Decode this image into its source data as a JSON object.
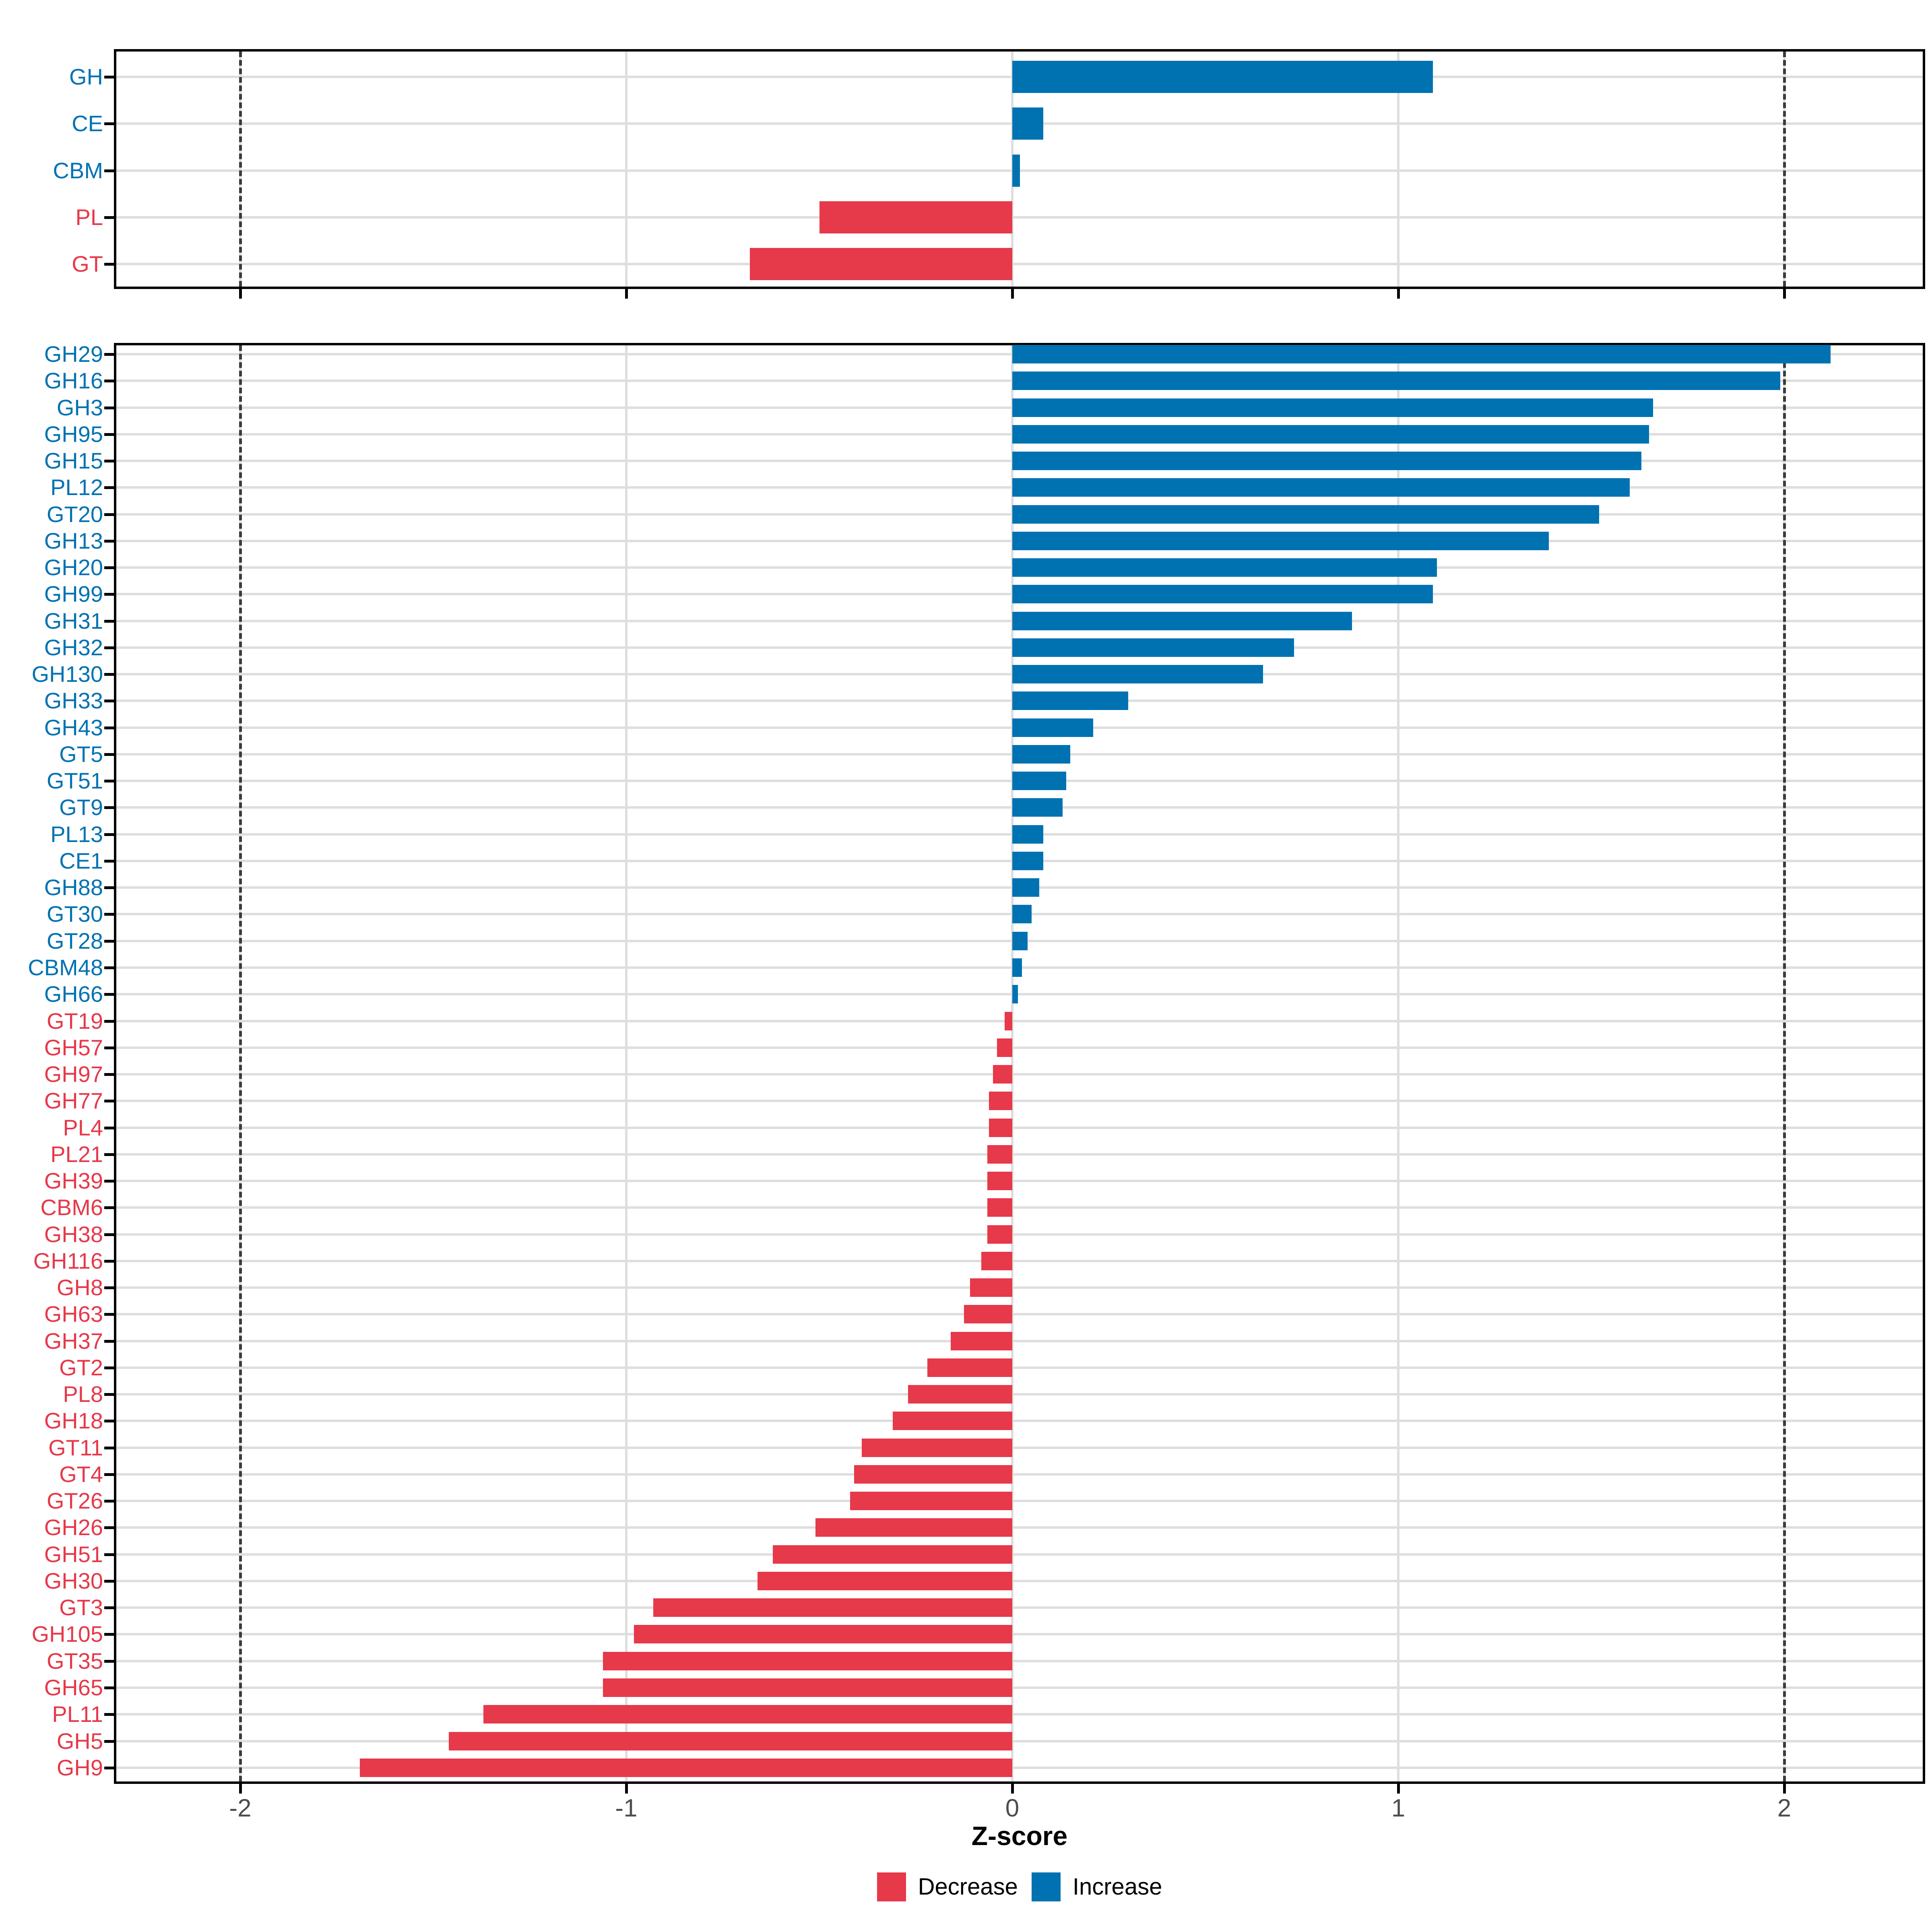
{
  "figure": {
    "background": "#ffffff"
  },
  "colors": {
    "increase": "#0072B2",
    "decrease": "#E6394A",
    "gridline": "#dedede",
    "panel_border": "#000000",
    "dashed_line": "#3a3a3a",
    "tick_label": "#4d4d4d"
  },
  "axis": {
    "title": "Z-score",
    "tick_labels": [
      "-2",
      "-1",
      "0",
      "1",
      "2"
    ],
    "tick_values": [
      -2,
      -1,
      0,
      1,
      2
    ],
    "dashed_lines_z": [
      -2,
      2
    ],
    "xlim": [
      -2.33,
      2.37
    ]
  },
  "legend": {
    "items": [
      {
        "label": "Decrease",
        "color_key": "decrease"
      },
      {
        "label": "Increase",
        "color_key": "increase"
      }
    ]
  },
  "chart_data": [
    {
      "type": "bar",
      "orientation": "horizontal",
      "panel": "enzyme-class-summary",
      "title": "",
      "xlabel": "Z-score",
      "xlim": [
        -2.33,
        2.37
      ],
      "grid": true,
      "categories": [
        "GH",
        "CE",
        "CBM",
        "PL",
        "GT"
      ],
      "values": [
        1.09,
        0.08,
        0.02,
        -0.5,
        -0.68
      ],
      "directions": [
        "Increase",
        "Increase",
        "Increase",
        "Decrease",
        "Decrease"
      ]
    },
    {
      "type": "bar",
      "orientation": "horizontal",
      "panel": "cazyme-families",
      "title": "",
      "xlabel": "Z-score",
      "xlim": [
        -2.33,
        2.37
      ],
      "grid": true,
      "categories": [
        "GH29",
        "GH16",
        "GH3",
        "GH95",
        "GH15",
        "PL12",
        "GT20",
        "GH13",
        "GH20",
        "GH99",
        "GH31",
        "GH32",
        "GH130",
        "GH33",
        "GH43",
        "GT5",
        "GT51",
        "GT9",
        "PL13",
        "CE1",
        "GH88",
        "GT30",
        "GT28",
        "CBM48",
        "GH66",
        "GT19",
        "GH57",
        "GH97",
        "GH77",
        "PL4",
        "PL21",
        "GH39",
        "CBM6",
        "GH38",
        "GH116",
        "GH8",
        "GH63",
        "GH37",
        "GT2",
        "PL8",
        "GH18",
        "GT11",
        "GT4",
        "GT26",
        "GH26",
        "GH51",
        "GH30",
        "GT3",
        "GH105",
        "GT35",
        "GH65",
        "PL11",
        "GH5",
        "GH9"
      ],
      "values": [
        2.12,
        1.99,
        1.66,
        1.65,
        1.63,
        1.6,
        1.52,
        1.39,
        1.1,
        1.09,
        0.88,
        0.73,
        0.65,
        0.3,
        0.21,
        0.15,
        0.14,
        0.13,
        0.08,
        0.08,
        0.07,
        0.05,
        0.04,
        0.025,
        0.015,
        -0.02,
        -0.04,
        -0.05,
        -0.06,
        -0.06,
        -0.065,
        -0.065,
        -0.065,
        -0.065,
        -0.08,
        -0.11,
        -0.125,
        -0.16,
        -0.22,
        -0.27,
        -0.31,
        -0.39,
        -0.41,
        -0.42,
        -0.51,
        -0.62,
        -0.66,
        -0.93,
        -0.98,
        -1.06,
        -1.06,
        -1.37,
        -1.46,
        -1.69
      ],
      "directions": [
        "Increase",
        "Increase",
        "Increase",
        "Increase",
        "Increase",
        "Increase",
        "Increase",
        "Increase",
        "Increase",
        "Increase",
        "Increase",
        "Increase",
        "Increase",
        "Increase",
        "Increase",
        "Increase",
        "Increase",
        "Increase",
        "Increase",
        "Increase",
        "Increase",
        "Increase",
        "Increase",
        "Increase",
        "Increase",
        "Decrease",
        "Decrease",
        "Decrease",
        "Decrease",
        "Decrease",
        "Decrease",
        "Decrease",
        "Decrease",
        "Decrease",
        "Decrease",
        "Decrease",
        "Decrease",
        "Decrease",
        "Decrease",
        "Decrease",
        "Decrease",
        "Decrease",
        "Decrease",
        "Decrease",
        "Decrease",
        "Decrease",
        "Decrease",
        "Decrease",
        "Decrease",
        "Decrease",
        "Decrease",
        "Decrease",
        "Decrease",
        "Decrease"
      ]
    }
  ]
}
